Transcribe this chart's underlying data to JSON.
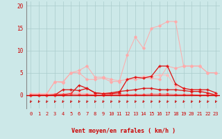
{
  "x": [
    0,
    1,
    2,
    3,
    4,
    5,
    6,
    7,
    8,
    9,
    10,
    11,
    12,
    13,
    14,
    15,
    16,
    17,
    18,
    19,
    20,
    21,
    22,
    23
  ],
  "series": [
    {
      "color": "#ffaaaa",
      "linewidth": 0.7,
      "marker": "D",
      "markersize": 1.8,
      "values": [
        0.3,
        0.3,
        0.3,
        3.0,
        3.0,
        5.0,
        5.0,
        3.5,
        3.5,
        3.8,
        3.0,
        3.0,
        9.0,
        13.0,
        10.5,
        15.0,
        15.5,
        16.5,
        16.5,
        6.5,
        6.5,
        6.5,
        5.0,
        5.0
      ]
    },
    {
      "color": "#ffaaaa",
      "linewidth": 0.7,
      "marker": "D",
      "markersize": 1.8,
      "values": [
        0.3,
        0.3,
        0.3,
        3.0,
        2.8,
        5.0,
        5.5,
        6.5,
        4.0,
        4.0,
        3.5,
        3.2,
        3.5,
        3.5,
        3.8,
        3.8,
        3.5,
        6.5,
        6.0,
        6.5,
        6.5,
        6.5,
        5.0,
        5.0
      ]
    },
    {
      "color": "#ffbbbb",
      "linewidth": 0.7,
      "marker": "D",
      "markersize": 1.8,
      "values": [
        0.3,
        0.3,
        0.3,
        0.3,
        0.3,
        0.5,
        0.5,
        0.3,
        0.3,
        0.5,
        0.5,
        0.5,
        3.5,
        4.0,
        4.2,
        4.2,
        4.5,
        4.5,
        2.0,
        1.5,
        1.2,
        1.2,
        0.3,
        0.2
      ]
    },
    {
      "color": "#dd1111",
      "linewidth": 0.9,
      "marker": "+",
      "markersize": 3.5,
      "values": [
        0.0,
        0.0,
        0.0,
        0.1,
        0.1,
        0.3,
        2.2,
        1.5,
        0.5,
        0.3,
        0.3,
        0.5,
        3.5,
        4.0,
        3.8,
        4.2,
        6.5,
        6.5,
        2.5,
        1.5,
        1.2,
        1.2,
        1.2,
        0.5
      ]
    },
    {
      "color": "#dd1111",
      "linewidth": 0.9,
      "marker": "+",
      "markersize": 3.5,
      "values": [
        0.0,
        0.0,
        0.0,
        0.0,
        1.2,
        1.2,
        1.0,
        1.5,
        0.5,
        0.3,
        0.5,
        0.8,
        1.0,
        1.2,
        1.5,
        1.5,
        1.2,
        1.2,
        1.2,
        1.0,
        0.8,
        0.8,
        0.5,
        0.0
      ]
    },
    {
      "color": "#ff4444",
      "linewidth": 0.7,
      "marker": "D",
      "markersize": 1.5,
      "values": [
        0.0,
        0.0,
        0.0,
        0.0,
        0.0,
        0.2,
        0.1,
        0.1,
        0.0,
        0.0,
        0.1,
        0.1,
        0.1,
        0.1,
        0.1,
        0.2,
        0.2,
        0.2,
        0.1,
        0.1,
        0.1,
        0.0,
        0.0,
        0.0
      ]
    }
  ],
  "yticks": [
    0,
    5,
    10,
    15,
    20
  ],
  "xticks": [
    0,
    1,
    2,
    3,
    4,
    5,
    6,
    7,
    8,
    9,
    10,
    11,
    12,
    13,
    14,
    15,
    16,
    17,
    18,
    19,
    20,
    21,
    22,
    23
  ],
  "xlabel": "Vent moyen/en rafales ( km/h )",
  "ylim": [
    -3.0,
    21
  ],
  "xlim": [
    -0.5,
    23.5
  ],
  "bg_color": "#cce8e8",
  "grid_color": "#aacccc",
  "red_line_color": "#cc0000",
  "text_color": "#cc0000",
  "arrow_color": "#cc0000",
  "left_spine_color": "#888888"
}
